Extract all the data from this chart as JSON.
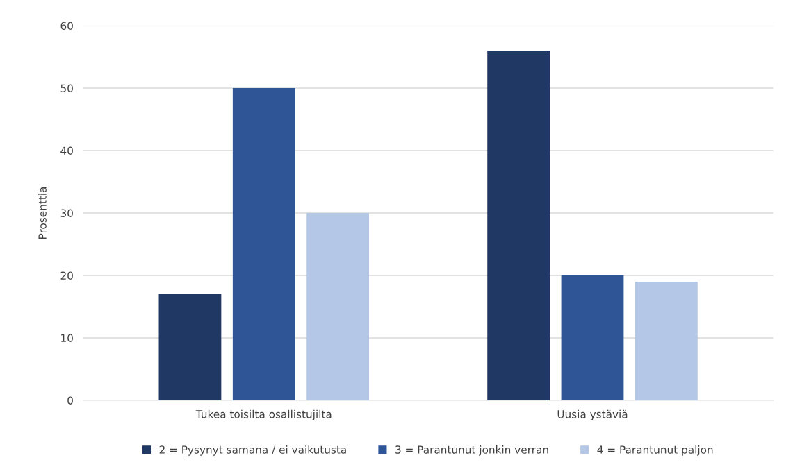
{
  "chart_data": {
    "type": "bar",
    "ylabel": "Prosenttia",
    "categories": [
      "Tukea toisilta osallistujilta",
      "Uusia ystäviä"
    ],
    "series": [
      {
        "name": "2 = Pysynyt samana / ei vaikutusta",
        "color": "#1f3864",
        "values": [
          17,
          56
        ]
      },
      {
        "name": "3 = Parantunut jonkin verran",
        "color": "#2f5597",
        "values": [
          50,
          20
        ]
      },
      {
        "name": "4 = Parantunut paljon",
        "color": "#b4c7e7",
        "values": [
          30,
          19
        ]
      }
    ],
    "ylim": [
      0,
      60
    ],
    "yticks": [
      0,
      10,
      20,
      30,
      40,
      50,
      60
    ],
    "grid": "y",
    "legend": "bottom"
  }
}
